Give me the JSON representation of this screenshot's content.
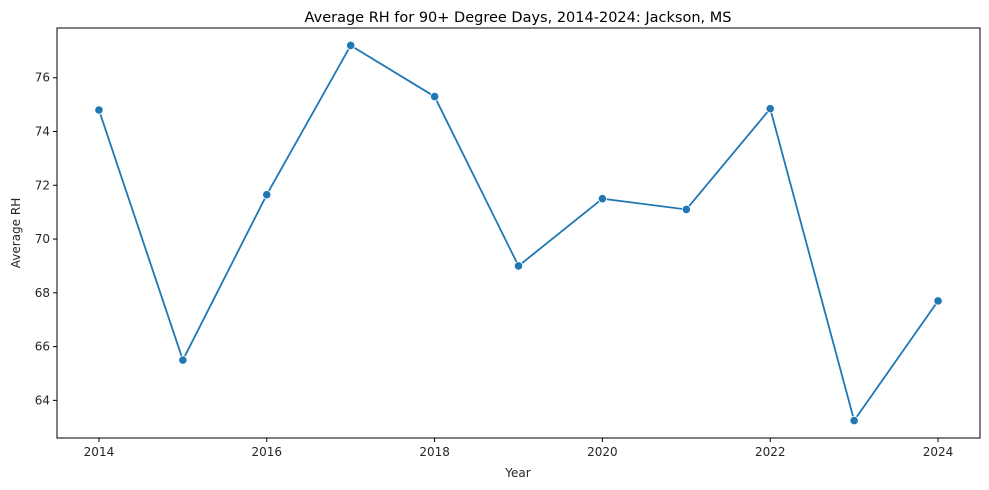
{
  "chart_data": {
    "type": "line",
    "title": "Average RH for 90+ Degree Days, 2014-2024: Jackson, MS",
    "xlabel": "Year",
    "ylabel": "Average RH",
    "x": [
      2014,
      2015,
      2016,
      2017,
      2018,
      2019,
      2020,
      2021,
      2022,
      2023,
      2024
    ],
    "series": [
      {
        "values": [
          74.8,
          65.5,
          71.65,
          77.2,
          75.3,
          69.0,
          71.5,
          71.1,
          74.85,
          63.25,
          67.7
        ]
      }
    ],
    "xlim": [
      2013.5,
      2024.5
    ],
    "ylim": [
      62.6,
      77.85
    ],
    "xticks": [
      "2014",
      "2016",
      "2018",
      "2020",
      "2022",
      "2024"
    ],
    "yticks": [
      "64",
      "66",
      "68",
      "70",
      "72",
      "74",
      "76"
    ],
    "grid": false,
    "legend": "none",
    "colors": {
      "line": "#1f77b4",
      "marker": "#1f77b4",
      "marker_edge": "#ffffff",
      "axis": "#000000"
    }
  }
}
